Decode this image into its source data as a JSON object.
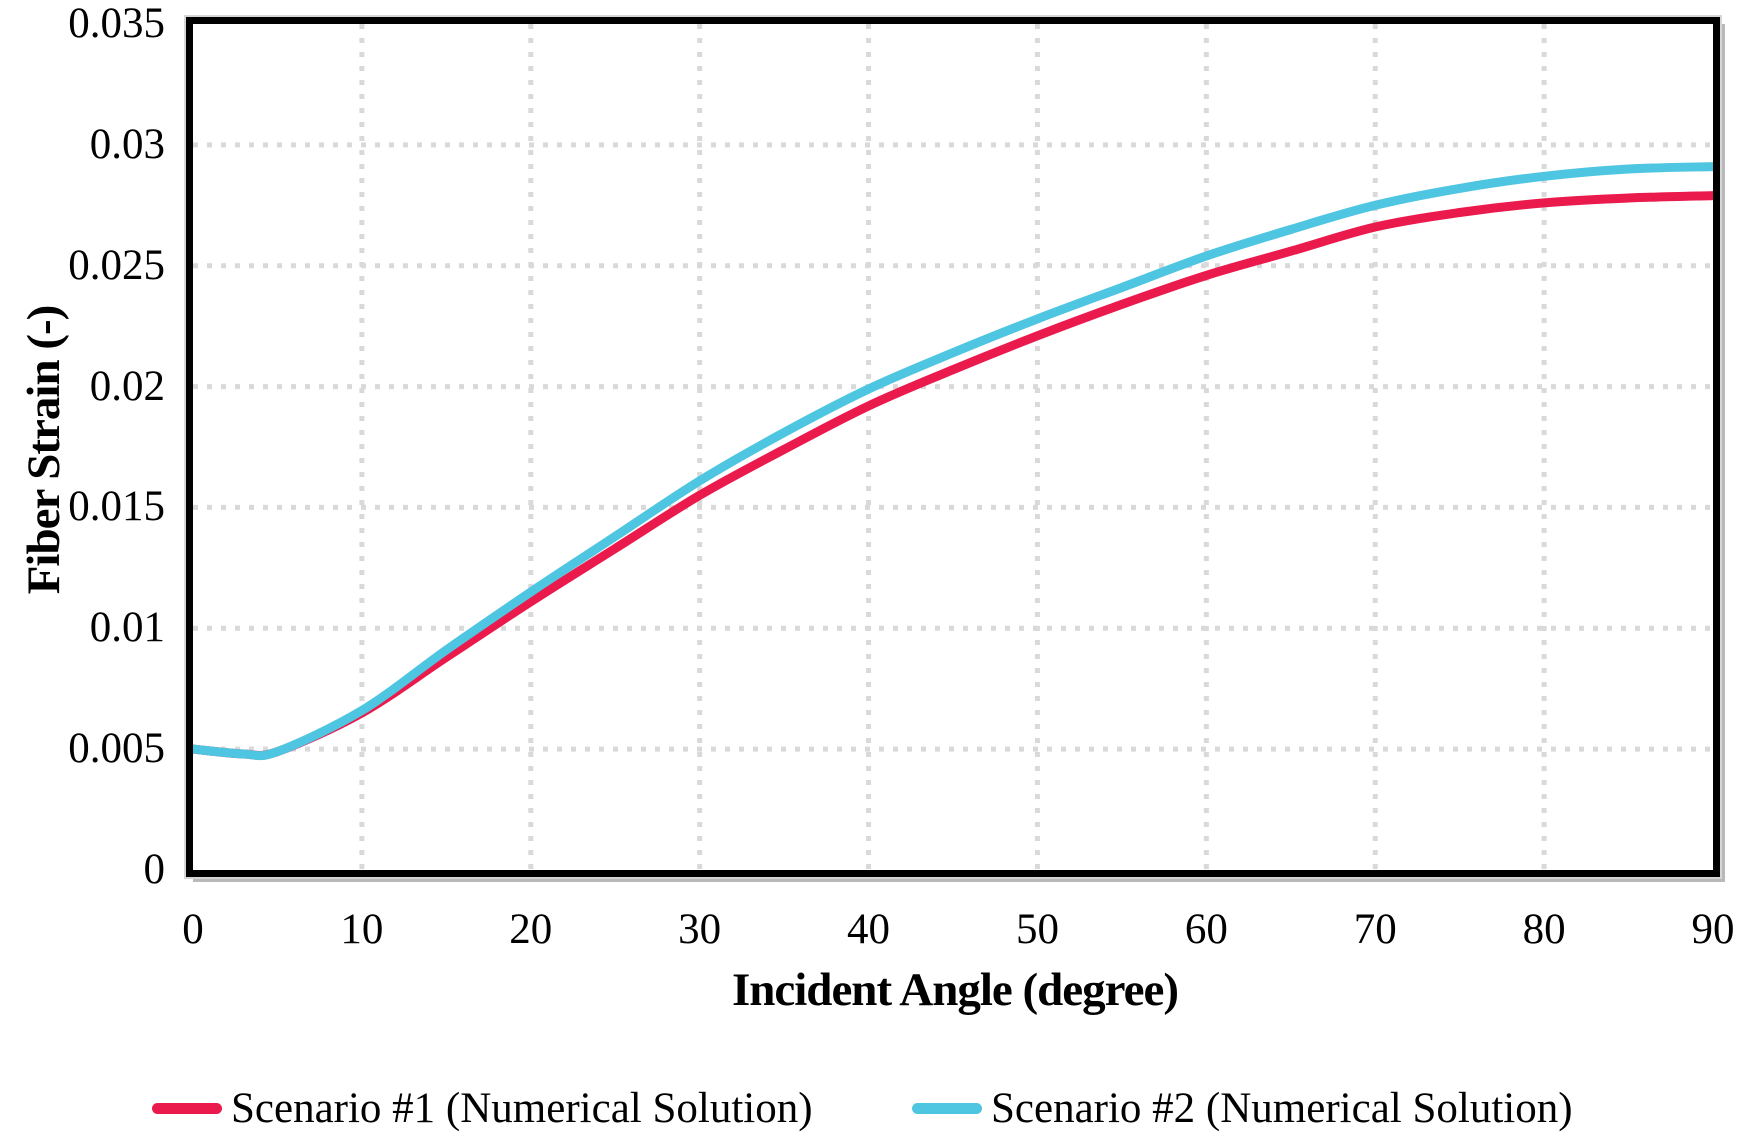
{
  "figure": {
    "background": "#ffffff",
    "frame_color": "#000000",
    "frame_shadow_color": "#b9b9b9"
  },
  "chart_data": {
    "type": "line",
    "title": "",
    "xlabel": "Incident Angle (degree)",
    "ylabel": "Fiber Strain (-)",
    "xlim": [
      0,
      90
    ],
    "ylim": [
      0,
      0.035
    ],
    "x_ticks": [
      0,
      10,
      20,
      30,
      40,
      50,
      60,
      70,
      80,
      90
    ],
    "x_tick_labels": [
      "0",
      "10",
      "20",
      "30",
      "40",
      "50",
      "60",
      "70",
      "80",
      "90"
    ],
    "y_ticks": [
      0,
      0.005,
      0.01,
      0.015,
      0.02,
      0.025,
      0.03,
      0.035
    ],
    "y_tick_labels": [
      "0",
      "0.005",
      "0.01",
      "0.015",
      "0.02",
      "0.025",
      "0.03",
      "0.035"
    ],
    "grid": "both-dotted",
    "grid_color": "#d9d9d9",
    "legend_position": "bottom",
    "x": [
      0,
      3,
      5,
      10,
      15,
      20,
      25,
      30,
      35,
      40,
      45,
      50,
      55,
      60,
      65,
      70,
      75,
      80,
      85,
      90
    ],
    "series": [
      {
        "name": "Scenario #1 (Numerical Solution)",
        "color": "#EB1A4D",
        "values": [
          0.005,
          0.0048,
          0.0049,
          0.0065,
          0.0088,
          0.0111,
          0.0133,
          0.0155,
          0.0174,
          0.0192,
          0.0207,
          0.0221,
          0.0234,
          0.0246,
          0.0256,
          0.0266,
          0.0272,
          0.0276,
          0.0278,
          0.0279
        ]
      },
      {
        "name": "Scenario #2 (Numerical Solution)",
        "color": "#4FC6E1",
        "values": [
          0.005,
          0.0048,
          0.0049,
          0.0066,
          0.0091,
          0.0115,
          0.0138,
          0.0161,
          0.0181,
          0.0199,
          0.0214,
          0.0228,
          0.0241,
          0.0254,
          0.0265,
          0.0275,
          0.0282,
          0.0287,
          0.029,
          0.0291
        ]
      }
    ]
  }
}
